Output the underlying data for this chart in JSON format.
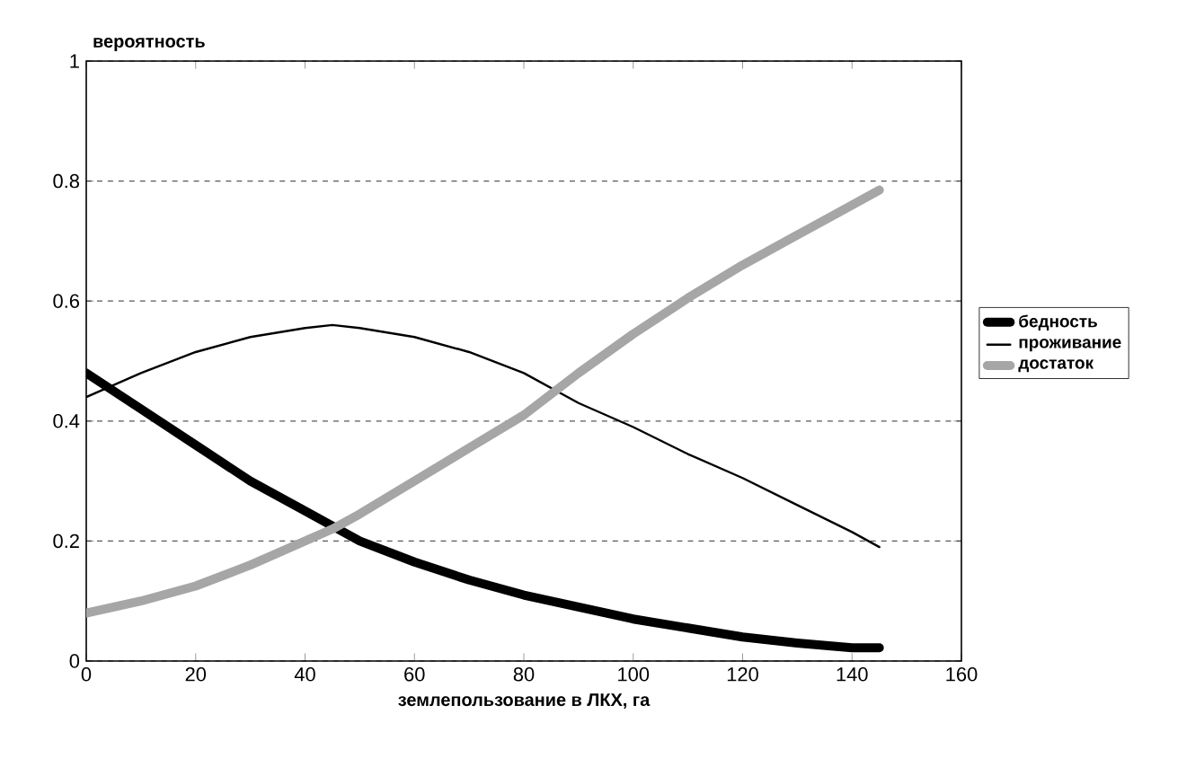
{
  "chart_data": {
    "type": "line",
    "xlabel": "землепользование в ЛКХ, га",
    "ylabel": "вероятность",
    "x": [
      0,
      10,
      20,
      30,
      40,
      45,
      50,
      60,
      70,
      80,
      90,
      100,
      110,
      120,
      130,
      140,
      145
    ],
    "series": [
      {
        "name": "бедность",
        "color": "#000000",
        "values": [
          0.48,
          0.42,
          0.36,
          0.3,
          0.25,
          0.225,
          0.2,
          0.165,
          0.135,
          0.11,
          0.09,
          0.07,
          0.055,
          0.04,
          0.03,
          0.022,
          0.022
        ]
      },
      {
        "name": "проживание",
        "color": "#000000",
        "values": [
          0.44,
          0.48,
          0.515,
          0.54,
          0.555,
          0.56,
          0.555,
          0.54,
          0.515,
          0.48,
          0.43,
          0.39,
          0.345,
          0.305,
          0.26,
          0.215,
          0.19
        ]
      },
      {
        "name": "достаток",
        "color": "#a6a6a6",
        "values": [
          0.08,
          0.1,
          0.125,
          0.16,
          0.2,
          0.22,
          0.245,
          0.3,
          0.355,
          0.41,
          0.48,
          0.545,
          0.605,
          0.66,
          0.71,
          0.76,
          0.785
        ]
      }
    ],
    "xlim": [
      0,
      160
    ],
    "xticks": [
      0,
      20,
      40,
      60,
      80,
      100,
      120,
      140,
      160
    ],
    "ylim": [
      0,
      1
    ],
    "yticks": [
      0,
      0.2,
      0.4,
      0.6,
      0.8,
      1
    ],
    "grid": "y",
    "legend": "right",
    "marker": "none",
    "line_style": "solid"
  }
}
